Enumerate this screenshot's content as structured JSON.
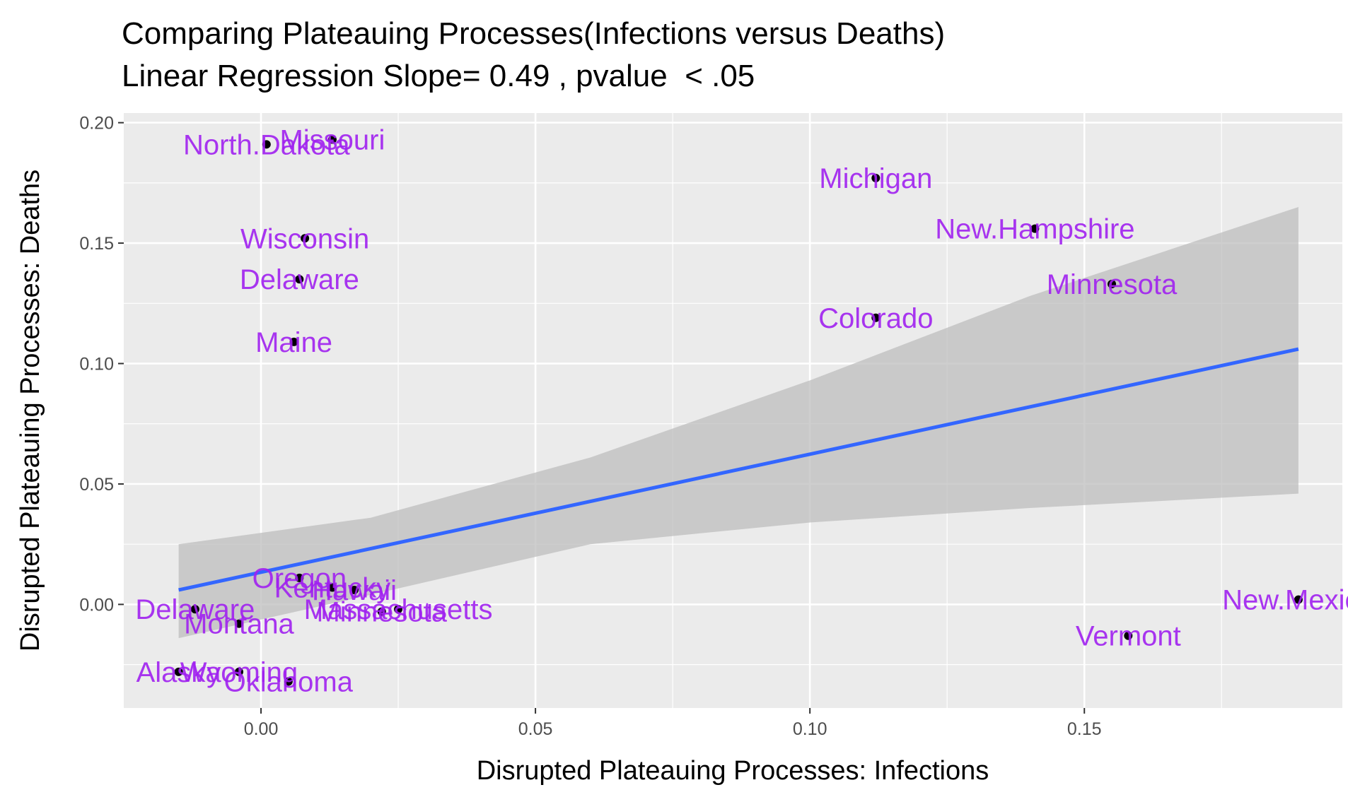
{
  "chart_data": {
    "type": "scatter",
    "title": "Comparing Plateauing Processes(Infections versus Deaths)",
    "subtitle": "Linear Regression Slope= 0.49 , pvalue  < .05",
    "xlabel": "Disrupted Plateauing Processes: Infections",
    "ylabel": "Disrupted Plateauing Processes: Deaths",
    "xlim": [
      -0.025,
      0.197
    ],
    "ylim": [
      -0.043,
      0.204
    ],
    "xticks": [
      0.0,
      0.05,
      0.1,
      0.15
    ],
    "xtick_labels": [
      "0.00",
      "0.05",
      "0.10",
      "0.15"
    ],
    "yticks": [
      0.0,
      0.05,
      0.1,
      0.15,
      0.2
    ],
    "ytick_labels": [
      "0.00",
      "0.05",
      "0.10",
      "0.15",
      "0.20"
    ],
    "grid": true,
    "point_color": "#000000",
    "label_color": "#a020f0",
    "line_color": "#3366ff",
    "ribbon_color": "#bdbdbd",
    "background_color": "#ebebeb",
    "points": [
      {
        "label": "North.Dakota",
        "x": 0.001,
        "y": 0.191
      },
      {
        "label": "Missouri",
        "x": 0.013,
        "y": 0.193
      },
      {
        "label": "Michigan",
        "x": 0.112,
        "y": 0.177
      },
      {
        "label": "Wisconsin",
        "x": 0.008,
        "y": 0.152
      },
      {
        "label": "New.Hampshire",
        "x": 0.141,
        "y": 0.156
      },
      {
        "label": "Delaware",
        "x": 0.007,
        "y": 0.135
      },
      {
        "label": "Minnesota",
        "x": 0.155,
        "y": 0.133
      },
      {
        "label": "Colorado",
        "x": 0.112,
        "y": 0.119
      },
      {
        "label": "Maine",
        "x": 0.006,
        "y": 0.109
      },
      {
        "label": "Oregon",
        "x": 0.007,
        "y": 0.011
      },
      {
        "label": "Kentucky",
        "x": 0.013,
        "y": 0.007
      },
      {
        "label": "Hawaii",
        "x": 0.017,
        "y": 0.006
      },
      {
        "label": "Massachusetts",
        "x": 0.025,
        "y": -0.002
      },
      {
        "label": "Minnesota",
        "x": 0.022,
        "y": -0.003
      },
      {
        "label": "Delaware",
        "x": -0.012,
        "y": -0.002
      },
      {
        "label": "Montana",
        "x": -0.004,
        "y": -0.008
      },
      {
        "label": "New.Mexico",
        "x": 0.189,
        "y": 0.002
      },
      {
        "label": "Vermont",
        "x": 0.158,
        "y": -0.013
      },
      {
        "label": "Alaska",
        "x": -0.015,
        "y": -0.028
      },
      {
        "label": "Wyoming",
        "x": -0.004,
        "y": -0.028
      },
      {
        "label": "Oklahoma",
        "x": 0.005,
        "y": -0.032
      }
    ],
    "regression": {
      "x": [
        -0.015,
        0.189
      ],
      "y": [
        0.006,
        0.106
      ],
      "ribbon_x": [
        -0.015,
        0.02,
        0.06,
        0.1,
        0.14,
        0.189
      ],
      "ribbon_upper": [
        0.025,
        0.036,
        0.061,
        0.093,
        0.128,
        0.165
      ],
      "ribbon_lower": [
        -0.014,
        0.004,
        0.025,
        0.034,
        0.04,
        0.046
      ]
    }
  }
}
